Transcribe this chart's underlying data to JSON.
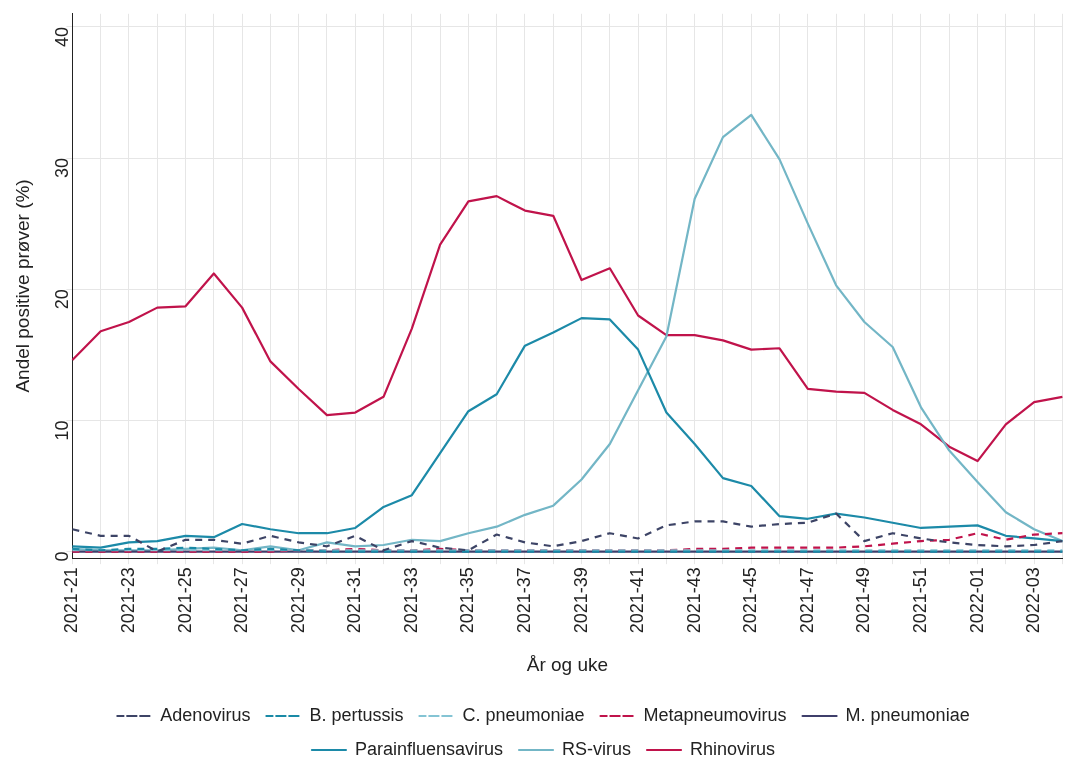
{
  "chart_data": {
    "type": "line",
    "xlabel": "År og uke",
    "ylabel": "Andel positive prøver (%)",
    "categories": [
      "2021-21",
      null,
      "2021-23",
      null,
      "2021-25",
      null,
      "2021-27",
      null,
      "2021-29",
      null,
      "2021-31",
      null,
      "2021-33",
      null,
      "2021-35",
      null,
      "2021-37",
      null,
      "2021-39",
      null,
      "2021-41",
      null,
      "2021-43",
      null,
      "2021-45",
      null,
      "2021-47",
      null,
      "2021-49",
      null,
      "2021-51",
      null,
      "2022-01",
      null,
      "2022-03",
      null
    ],
    "ylim": [
      -0.5,
      41
    ],
    "yticks": [
      0,
      10,
      20,
      30,
      40
    ],
    "grid": true,
    "legend": "bottom",
    "marker": "none",
    "series": [
      {
        "name": "Adenovirus",
        "color": "#3d4466",
        "line_style": "dashed",
        "values": [
          1.7,
          1.2,
          1.2,
          0.0,
          0.9,
          0.9,
          0.6,
          1.2,
          0.7,
          0.4,
          1.2,
          0.1,
          0.8,
          0.3,
          0.1,
          1.3,
          0.7,
          0.4,
          0.8,
          1.4,
          1.0,
          2.0,
          2.3,
          2.3,
          1.9,
          2.1,
          2.2,
          2.9,
          0.8,
          1.4,
          1.0,
          0.7,
          0.5,
          0.4,
          0.5,
          0.8
        ]
      },
      {
        "name": "B. pertussis",
        "color": "#1a8aa6",
        "line_style": "dashed",
        "values": [
          0.2,
          0.1,
          0.2,
          0.2,
          0.3,
          0.2,
          0.1,
          0.2,
          0.1,
          0.0,
          0.0,
          0.0,
          0.0,
          0.0,
          0.0,
          0.0,
          0.0,
          0.0,
          0.0,
          0.0,
          0.0,
          0.0,
          0.0,
          0.0,
          0.0,
          0.0,
          0.0,
          0.0,
          0.0,
          0.0,
          0.0,
          0.0,
          0.0,
          0.0,
          0.0,
          0.0
        ]
      },
      {
        "name": "C. pneumoniae",
        "color": "#84c4d4",
        "line_style": "dashed",
        "values": [
          0.1,
          0.1,
          0.1,
          0.1,
          0.1,
          0.1,
          0.1,
          0.1,
          0.1,
          0.1,
          0.1,
          0.1,
          0.1,
          0.1,
          0.1,
          0.1,
          0.1,
          0.1,
          0.1,
          0.1,
          0.1,
          0.1,
          0.1,
          0.1,
          0.1,
          0.1,
          0.1,
          0.1,
          0.1,
          0.1,
          0.1,
          0.1,
          0.1,
          0.1,
          0.1,
          0.1
        ]
      },
      {
        "name": "Metapneumovirus",
        "color": "#c0134b",
        "line_style": "dashed",
        "values": [
          0.0,
          0.0,
          0.0,
          0.0,
          0.0,
          0.0,
          0.0,
          0.0,
          0.1,
          0.1,
          0.2,
          0.1,
          0.1,
          0.2,
          0.1,
          0.1,
          0.1,
          0.1,
          0.1,
          0.1,
          0.1,
          0.1,
          0.2,
          0.2,
          0.3,
          0.3,
          0.3,
          0.3,
          0.4,
          0.6,
          0.8,
          0.9,
          1.4,
          0.9,
          1.3,
          1.4
        ]
      },
      {
        "name": "M. pneumoniae",
        "color": "#3f3f6b",
        "line_style": "solid",
        "values": [
          0,
          0,
          0,
          0,
          0,
          0,
          0,
          0,
          0,
          0,
          0,
          0,
          0,
          0,
          0,
          0,
          0,
          0,
          0,
          0,
          0,
          0,
          0,
          0,
          0,
          0,
          0,
          0,
          0,
          0,
          0,
          0,
          0,
          0,
          0,
          0
        ]
      },
      {
        "name": "Parainfluensavirus",
        "color": "#1c8aa8",
        "line_style": "solid",
        "values": [
          0.4,
          0.3,
          0.7,
          0.8,
          1.2,
          1.1,
          2.1,
          1.7,
          1.4,
          1.4,
          1.8,
          3.4,
          4.3,
          7.5,
          10.7,
          12.0,
          15.7,
          16.7,
          17.8,
          17.7,
          15.4,
          10.6,
          8.2,
          5.6,
          5.0,
          2.7,
          2.5,
          2.9,
          2.6,
          2.2,
          1.8,
          1.9,
          2.0,
          1.2,
          1.0,
          0.8
        ]
      },
      {
        "name": "RS-virus",
        "color": "#73b6c6",
        "line_style": "solid",
        "values": [
          0.2,
          0.1,
          0.1,
          0.1,
          0.2,
          0.3,
          0.1,
          0.4,
          0.1,
          0.7,
          0.4,
          0.5,
          0.9,
          0.8,
          1.4,
          1.9,
          2.8,
          3.5,
          5.5,
          8.2,
          12.3,
          16.4,
          26.9,
          31.6,
          33.3,
          29.9,
          25.0,
          20.3,
          17.5,
          15.6,
          11.0,
          7.7,
          5.3,
          3.0,
          1.7,
          0.8
        ]
      },
      {
        "name": "Rhinovirus",
        "color": "#c0134b",
        "line_style": "solid",
        "values": [
          14.6,
          16.8,
          17.5,
          18.6,
          18.7,
          21.2,
          18.6,
          14.5,
          12.4,
          10.4,
          10.6,
          11.8,
          17.0,
          23.4,
          26.7,
          27.1,
          26.0,
          25.6,
          20.7,
          21.6,
          18.0,
          16.5,
          16.5,
          16.1,
          15.4,
          15.5,
          12.4,
          12.2,
          12.1,
          10.8,
          9.7,
          8.0,
          6.9,
          9.7,
          11.4,
          11.8
        ]
      }
    ]
  }
}
